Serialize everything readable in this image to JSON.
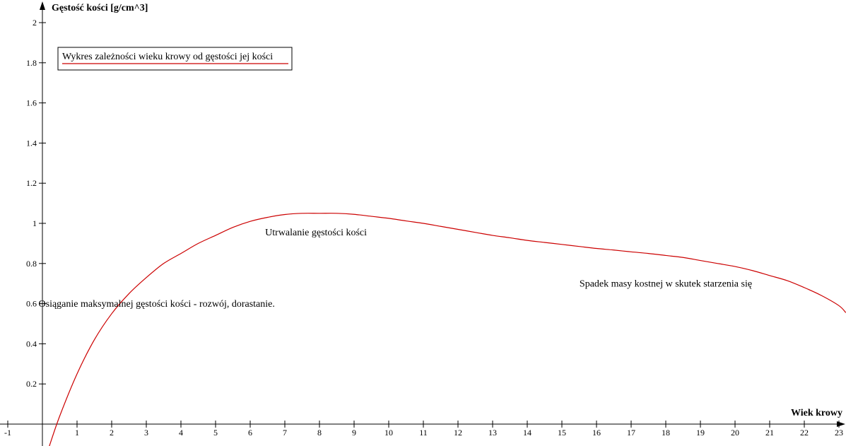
{
  "chart_data": {
    "type": "line",
    "title": "",
    "xlabel": "Wiek krowy",
    "ylabel": "Gęstość kości [g/cm^3]",
    "xlim": [
      -1.2,
      23.2
    ],
    "ylim": [
      -0.1,
      2.05
    ],
    "x_ticks": [
      -1,
      1,
      2,
      3,
      4,
      5,
      6,
      7,
      8,
      9,
      10,
      11,
      12,
      13,
      14,
      15,
      16,
      17,
      18,
      19,
      20,
      21,
      22,
      23
    ],
    "y_ticks": [
      0.2,
      0.4,
      0.6,
      0.8,
      1,
      1.2,
      1.4,
      1.6,
      1.8,
      2
    ],
    "x_tick_labels": [
      "-1",
      "1",
      "2",
      "3",
      "4",
      "5",
      "6",
      "7",
      "8",
      "9",
      "10",
      "11",
      "12",
      "13",
      "14",
      "15",
      "16",
      "17",
      "18",
      "19",
      "20",
      "21",
      "22",
      "23"
    ],
    "y_tick_labels": [
      "0.2",
      "0.4",
      "0.6",
      "0.8",
      "1",
      "1.2",
      "1.4",
      "1.6",
      "1.8",
      "2"
    ],
    "grid": false,
    "legend_position": "top-left",
    "series": [
      {
        "name": "Wykres zależności wieku krowy od gęstości jej kości",
        "color": "#cc0000",
        "x": [
          0.2,
          0.5,
          1,
          1.5,
          2,
          2.5,
          3,
          3.5,
          4,
          4.5,
          5,
          5.5,
          6,
          6.5,
          7,
          7.5,
          8,
          8.5,
          9,
          9.5,
          10,
          10.5,
          11,
          11.5,
          12,
          12.5,
          13,
          13.5,
          14,
          14.5,
          15,
          15.5,
          16,
          16.5,
          17,
          17.5,
          18,
          18.5,
          19,
          19.5,
          20,
          20.5,
          21,
          21.5,
          22,
          22.5,
          23,
          23.2
        ],
        "y": [
          -0.11,
          0.04,
          0.25,
          0.42,
          0.55,
          0.65,
          0.73,
          0.8,
          0.85,
          0.9,
          0.94,
          0.98,
          1.01,
          1.03,
          1.044,
          1.05,
          1.05,
          1.05,
          1.045,
          1.035,
          1.025,
          1.012,
          1.0,
          0.985,
          0.97,
          0.955,
          0.94,
          0.928,
          0.915,
          0.905,
          0.895,
          0.885,
          0.875,
          0.867,
          0.858,
          0.85,
          0.84,
          0.83,
          0.815,
          0.8,
          0.785,
          0.765,
          0.74,
          0.715,
          0.68,
          0.64,
          0.59,
          0.555
        ]
      }
    ],
    "annotations": [
      {
        "text": "Utrwalanie gęstości kości",
        "x": 7.9,
        "y": 0.94
      },
      {
        "text": "Osiąganie maksymalnej gęstości kości - rozwój, dorastanie.",
        "x": 3.3,
        "y": 0.585
      },
      {
        "text": "Spadek masy kostnej w skutek starzenia się",
        "x": 18.0,
        "y": 0.685
      }
    ]
  }
}
